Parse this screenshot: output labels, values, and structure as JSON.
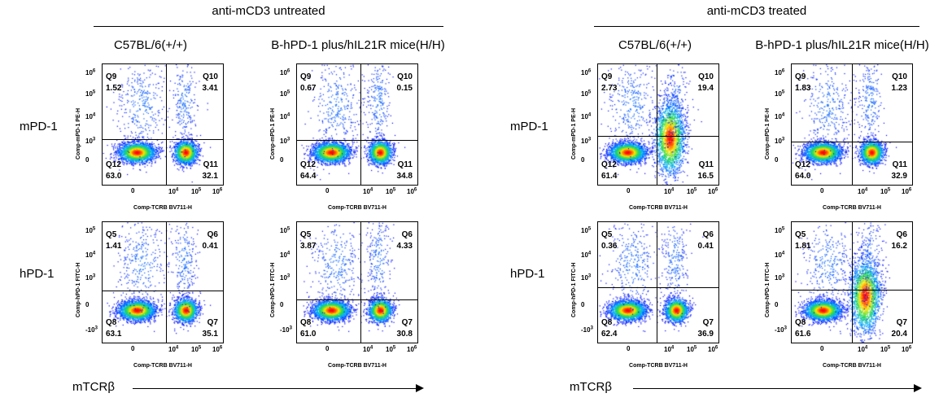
{
  "groups": [
    {
      "title": "anti-mCD3 untreated",
      "columns": [
        "C57BL/6(+/+)",
        "B-hPD-1 plus/hIL21R mice(H/H)"
      ]
    },
    {
      "title": "anti-mCD3 treated",
      "columns": [
        "C57BL/6(+/+)",
        "B-hPD-1 plus/hIL21R mice(H/H)"
      ]
    }
  ],
  "rows": [
    "mPD-1",
    "hPD-1"
  ],
  "x_axis_word": "mTCRβ",
  "x_axis_label": "Comp-TCRB BV711-H",
  "y_axis_labels": [
    "Comp-mPD-1 PE-H",
    "Comp-hPD-1 FITC-H"
  ],
  "panels": [
    {
      "row": 0,
      "group": 0,
      "col": 0,
      "q": [
        "Q9",
        "Q10",
        "Q11",
        "Q12"
      ],
      "v": [
        "1.52",
        "3.41",
        "32.1",
        "63.0"
      ]
    },
    {
      "row": 0,
      "group": 0,
      "col": 1,
      "q": [
        "Q9",
        "Q10",
        "Q11",
        "Q12"
      ],
      "v": [
        "0.67",
        "0.15",
        "34.8",
        "64.4"
      ]
    },
    {
      "row": 0,
      "group": 1,
      "col": 0,
      "q": [
        "Q9",
        "Q10",
        "Q11",
        "Q12"
      ],
      "v": [
        "2.73",
        "19.4",
        "16.5",
        "61.4"
      ]
    },
    {
      "row": 0,
      "group": 1,
      "col": 1,
      "q": [
        "Q9",
        "Q10",
        "Q11",
        "Q12"
      ],
      "v": [
        "1.83",
        "1.23",
        "32.9",
        "64.0"
      ]
    },
    {
      "row": 1,
      "group": 0,
      "col": 0,
      "q": [
        "Q5",
        "Q6",
        "Q7",
        "Q8"
      ],
      "v": [
        "1.41",
        "0.41",
        "35.1",
        "63.1"
      ]
    },
    {
      "row": 1,
      "group": 0,
      "col": 1,
      "q": [
        "Q5",
        "Q6",
        "Q7",
        "Q8"
      ],
      "v": [
        "3.87",
        "4.33",
        "30.8",
        "61.0"
      ]
    },
    {
      "row": 1,
      "group": 1,
      "col": 0,
      "q": [
        "Q5",
        "Q6",
        "Q7",
        "Q8"
      ],
      "v": [
        "0.36",
        "0.41",
        "36.9",
        "62.4"
      ]
    },
    {
      "row": 1,
      "group": 1,
      "col": 1,
      "q": [
        "Q5",
        "Q6",
        "Q7",
        "Q8"
      ],
      "v": [
        "1.81",
        "16.2",
        "20.4",
        "61.6"
      ]
    }
  ],
  "y_ticks_row0": [
    "10^6",
    "10^5",
    "10^4",
    "10^3",
    "0"
  ],
  "y_ticks_row1": [
    "10^5",
    "10^4",
    "10^3",
    "0",
    "-10^3"
  ],
  "x_ticks": [
    "0",
    "10^4",
    "10^5",
    "10^6"
  ]
}
